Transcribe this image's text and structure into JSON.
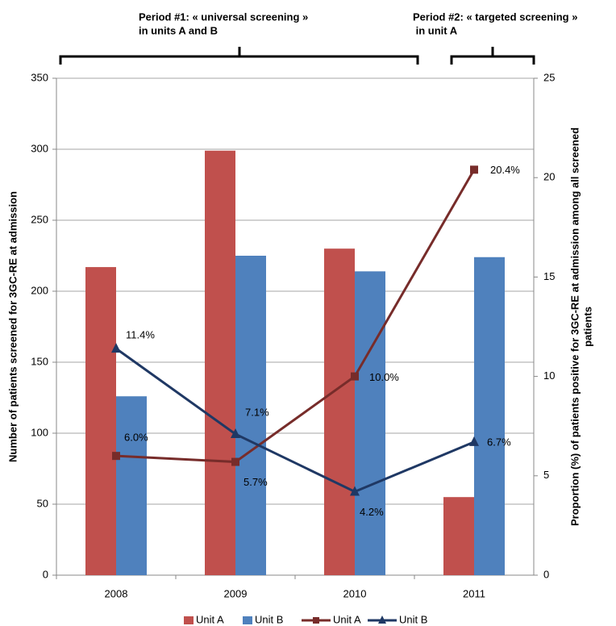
{
  "chart_data": {
    "type": "bar",
    "annotations": [
      [
        "Period #1: « universal screening »",
        "in units A and B"
      ],
      [
        "Period #2: « targeted screening »",
        " in unit A"
      ]
    ],
    "y_label": "Number of patients screened for 3GC-RE at admission",
    "y2_label": [
      "Proportion (%) of patients positive for 3GC-RE at admission among all screened",
      "patients"
    ],
    "categories": [
      "2008",
      "2009",
      "2010",
      "2011"
    ],
    "series": [
      {
        "name": "Unit A",
        "type": "bar",
        "color": "#c0504d",
        "values": [
          217,
          299,
          230,
          55
        ]
      },
      {
        "name": "Unit B",
        "type": "bar",
        "color": "#4f81bd",
        "values": [
          126,
          225,
          214,
          224
        ]
      },
      {
        "name": "Unit A",
        "type": "line",
        "marker": "square",
        "axis": "y2",
        "color": "#772c2a",
        "values": [
          6.0,
          5.7,
          10.0,
          20.4
        ],
        "value_labels": [
          "6.0%",
          "5.7%",
          "10.0%",
          "20.4%"
        ]
      },
      {
        "name": "Unit B",
        "type": "line",
        "marker": "triangle",
        "axis": "y2",
        "color": "#1f3864",
        "values": [
          11.4,
          7.1,
          4.2,
          6.7
        ],
        "value_labels": [
          "11.4%",
          "7.1%",
          "4.2%",
          "6.7%"
        ]
      }
    ],
    "ylim": [
      0,
      350
    ],
    "yticks": [
      0,
      50,
      100,
      150,
      200,
      250,
      300,
      350
    ],
    "y2lim": [
      0,
      25
    ],
    "y2ticks": [
      0,
      5,
      10,
      15,
      20,
      25
    ],
    "grid": true,
    "legend": "bottom"
  }
}
